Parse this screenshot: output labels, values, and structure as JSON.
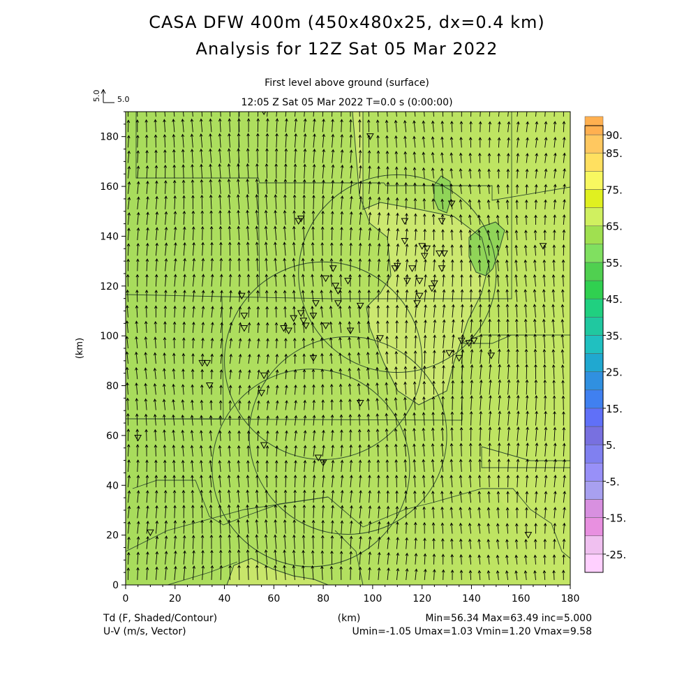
{
  "header": {
    "title_line1": "CASA DFW 400m (450x480x25, dx=0.4 km)",
    "title_line2": "Analysis for 12Z Sat 05 Mar 2022",
    "level": "First level above ground (surface)",
    "time": "12:05 Z Sat 05 Mar 2022    T=0.0 s (0:00:00)"
  },
  "vector_key": {
    "label_rotated": "5.0",
    "label": "5.0"
  },
  "footer": {
    "left_line1": "Td (F, Shaded/Contour)",
    "left_line2": "U-V (m/s, Vector)",
    "center": "(km)",
    "right_line1": "Min=56.34 Max=63.49 inc=5.000",
    "right_line2": "Umin=-1.05 Umax=1.03 Vmin=1.20 Vmax=9.58"
  },
  "chart_data": {
    "type": "heatmap",
    "title": "CASA DFW 400m (450x480x25, dx=0.4 km)",
    "subtitle": "Analysis for 12Z Sat 05 Mar 2022",
    "ylabel": "(km)",
    "xlabel": "(km)",
    "xlim": [
      0,
      180
    ],
    "ylim": [
      0,
      190
    ],
    "x_ticks": [
      0,
      20,
      40,
      60,
      80,
      100,
      120,
      140,
      160,
      180
    ],
    "y_ticks": [
      0,
      20,
      40,
      60,
      80,
      100,
      120,
      140,
      160,
      180
    ],
    "field": "Td (F, Shaded/Contour)",
    "vectors": "U-V (m/s, Vector)",
    "min": 56.34,
    "max": 63.49,
    "increment": 5.0,
    "u_range": [
      -1.05,
      1.03
    ],
    "v_range": [
      1.2,
      9.58
    ],
    "colorbar": {
      "labels": [
        "90.",
        "85.",
        "75.",
        "65.",
        "55.",
        "45.",
        "35.",
        "25.",
        "15.",
        "5.",
        "-5.",
        "-15.",
        "-25."
      ],
      "label_values": [
        90,
        85,
        75,
        65,
        55,
        45,
        35,
        25,
        15,
        5,
        -5,
        -15,
        -25
      ],
      "colors": [
        "#ffd0ff",
        "#f0c0f0",
        "#e890e0",
        "#d890e0",
        "#a8a0f0",
        "#9890f8",
        "#8080f0",
        "#7870e0",
        "#6070f8",
        "#4080f0",
        "#3090e0",
        "#20a8d0",
        "#20c0c0",
        "#20c8a0",
        "#20d080",
        "#30d050",
        "#50d050",
        "#80e060",
        "#a0e050",
        "#d0f060",
        "#e0f020",
        "#f8f860",
        "#ffe060",
        "#ffc860",
        "#ffb050",
        "#ff9840"
      ]
    },
    "radar_rings": [
      {
        "x": 75,
        "y": 47,
        "r": 40
      },
      {
        "x": 110,
        "y": 125,
        "r": 40
      },
      {
        "x": 80,
        "y": 90,
        "r": 40
      },
      {
        "x": 90,
        "y": 60,
        "r": 40
      }
    ],
    "stations": [
      [
        56,
        190
      ],
      [
        99,
        180
      ],
      [
        70,
        146
      ],
      [
        71,
        147
      ],
      [
        113,
        146
      ],
      [
        128,
        146
      ],
      [
        132,
        153
      ],
      [
        113,
        138
      ],
      [
        120,
        136
      ],
      [
        121,
        132
      ],
      [
        122,
        135
      ],
      [
        127,
        133
      ],
      [
        128,
        127
      ],
      [
        129,
        133
      ],
      [
        109,
        127
      ],
      [
        110,
        128
      ],
      [
        116,
        127
      ],
      [
        119,
        122
      ],
      [
        114,
        122
      ],
      [
        124,
        119
      ],
      [
        125,
        121
      ],
      [
        118,
        113
      ],
      [
        119,
        116
      ],
      [
        84,
        127
      ],
      [
        85,
        120
      ],
      [
        86,
        118
      ],
      [
        86,
        113
      ],
      [
        90,
        122
      ],
      [
        77,
        113
      ],
      [
        81,
        123
      ],
      [
        71,
        109
      ],
      [
        72,
        106
      ],
      [
        73,
        104
      ],
      [
        76,
        108
      ],
      [
        68,
        107
      ],
      [
        66,
        102
      ],
      [
        64,
        103
      ],
      [
        76,
        91
      ],
      [
        81,
        104
      ],
      [
        95,
        112
      ],
      [
        91,
        102
      ],
      [
        103,
        99
      ],
      [
        131,
        93
      ],
      [
        135,
        91
      ],
      [
        136,
        98
      ],
      [
        139,
        97
      ],
      [
        148,
        92
      ],
      [
        47,
        116
      ],
      [
        48,
        108
      ],
      [
        48,
        103
      ],
      [
        33,
        89
      ],
      [
        34,
        80
      ],
      [
        56,
        84
      ],
      [
        55,
        77
      ],
      [
        56,
        56
      ],
      [
        78,
        51
      ],
      [
        80,
        49
      ],
      [
        95,
        73
      ],
      [
        5,
        59
      ],
      [
        10,
        21
      ],
      [
        163,
        20
      ],
      [
        169,
        136
      ],
      [
        141,
        98
      ],
      [
        31,
        89
      ]
    ]
  }
}
